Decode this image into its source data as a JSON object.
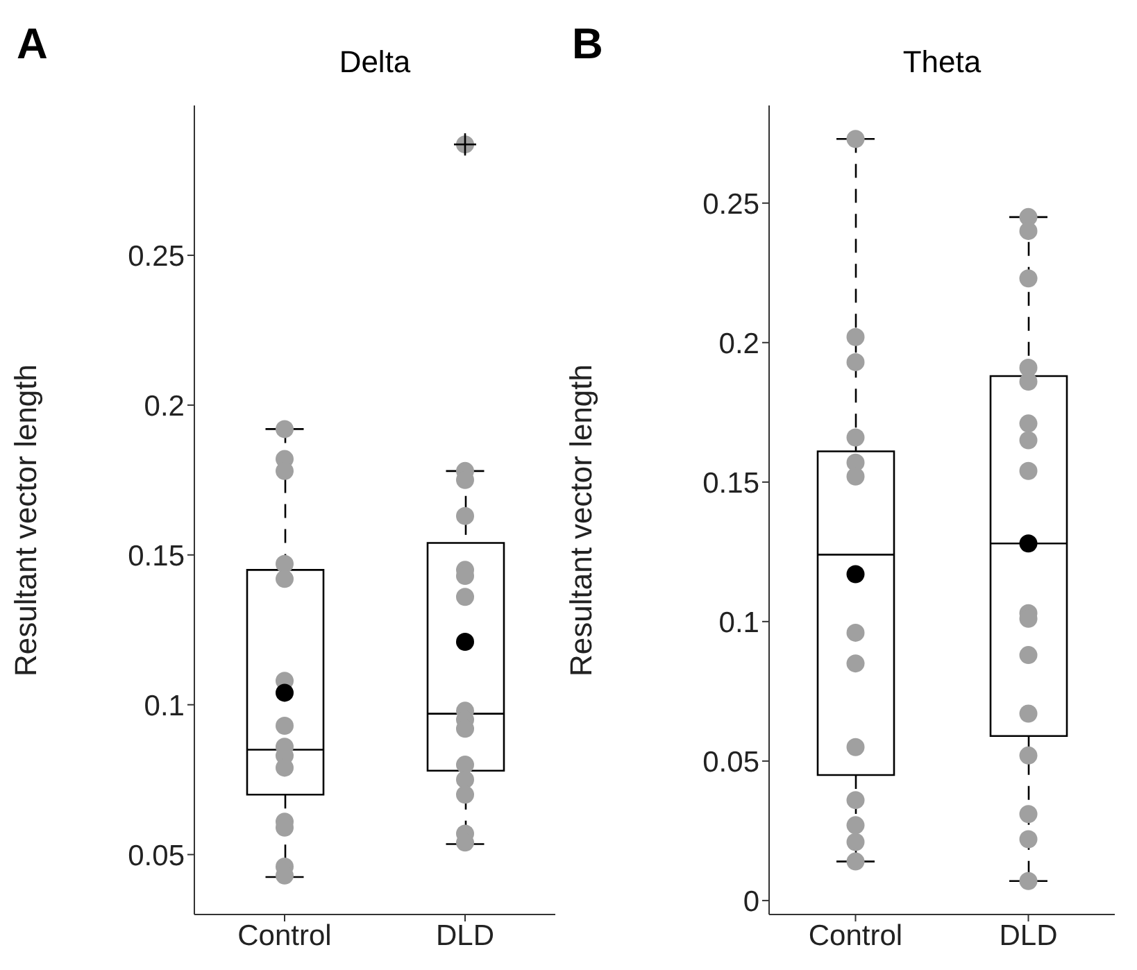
{
  "chart_data": [
    {
      "type": "box",
      "title": "Delta",
      "ylabel": "Resultant vector length",
      "annotations": [
        "A"
      ],
      "categories": [
        "Control",
        "DLD"
      ],
      "ylim": [
        0.03,
        0.3
      ],
      "yticks": [
        0.05,
        0.1,
        0.15,
        0.2,
        0.25
      ],
      "line_style": "dashed",
      "boxes": [
        {
          "low": 0.0425,
          "q1": 0.07,
          "median": 0.085,
          "q3": 0.145,
          "high": 0.192,
          "mean": 0.104
        },
        {
          "low": 0.0535,
          "q1": 0.078,
          "median": 0.097,
          "q3": 0.154,
          "high": 0.178,
          "mean": 0.121,
          "outliers": [
            0.287
          ]
        }
      ],
      "series": [
        {
          "type": "scatter",
          "color": "#a0a0a0",
          "marker": "circle",
          "x": [
            "Control",
            "Control",
            "Control",
            "Control",
            "Control",
            "Control",
            "Control",
            "Control",
            "Control",
            "Control",
            "Control",
            "Control",
            "Control",
            "Control",
            "DLD",
            "DLD",
            "DLD",
            "DLD",
            "DLD",
            "DLD",
            "DLD",
            "DLD",
            "DLD",
            "DLD",
            "DLD",
            "DLD",
            "DLD",
            "DLD"
          ],
          "values": [
            0.192,
            0.182,
            0.178,
            0.147,
            0.142,
            0.108,
            0.093,
            0.086,
            0.083,
            0.079,
            0.061,
            0.059,
            0.046,
            0.043,
            0.178,
            0.175,
            0.163,
            0.145,
            0.143,
            0.136,
            0.098,
            0.095,
            0.092,
            0.08,
            0.075,
            0.07,
            0.057,
            0.054
          ]
        }
      ]
    },
    {
      "type": "box",
      "title": "Theta",
      "ylabel": "Resultant vector length",
      "annotations": [
        "B"
      ],
      "categories": [
        "Control",
        "DLD"
      ],
      "ylim": [
        -0.005,
        0.285
      ],
      "yticks": [
        0,
        0.05,
        0.1,
        0.15,
        0.2,
        0.25
      ],
      "line_style": "dashed",
      "boxes": [
        {
          "low": 0.014,
          "q1": 0.045,
          "median": 0.124,
          "q3": 0.161,
          "high": 0.273,
          "mean": 0.117
        },
        {
          "low": 0.007,
          "q1": 0.059,
          "median": 0.128,
          "q3": 0.188,
          "high": 0.245,
          "mean": 0.128
        }
      ],
      "series": [
        {
          "type": "scatter",
          "color": "#a0a0a0",
          "marker": "circle",
          "x": [
            "Control",
            "Control",
            "Control",
            "Control",
            "Control",
            "Control",
            "Control",
            "Control",
            "Control",
            "Control",
            "Control",
            "Control",
            "Control",
            "DLD",
            "DLD",
            "DLD",
            "DLD",
            "DLD",
            "DLD",
            "DLD",
            "DLD",
            "DLD",
            "DLD",
            "DLD",
            "DLD",
            "DLD",
            "DLD",
            "DLD",
            "DLD"
          ],
          "values": [
            0.273,
            0.202,
            0.193,
            0.166,
            0.157,
            0.152,
            0.096,
            0.085,
            0.055,
            0.036,
            0.027,
            0.021,
            0.014,
            0.245,
            0.24,
            0.223,
            0.191,
            0.186,
            0.171,
            0.165,
            0.154,
            0.103,
            0.101,
            0.088,
            0.067,
            0.052,
            0.031,
            0.022,
            0.007
          ]
        }
      ]
    }
  ]
}
